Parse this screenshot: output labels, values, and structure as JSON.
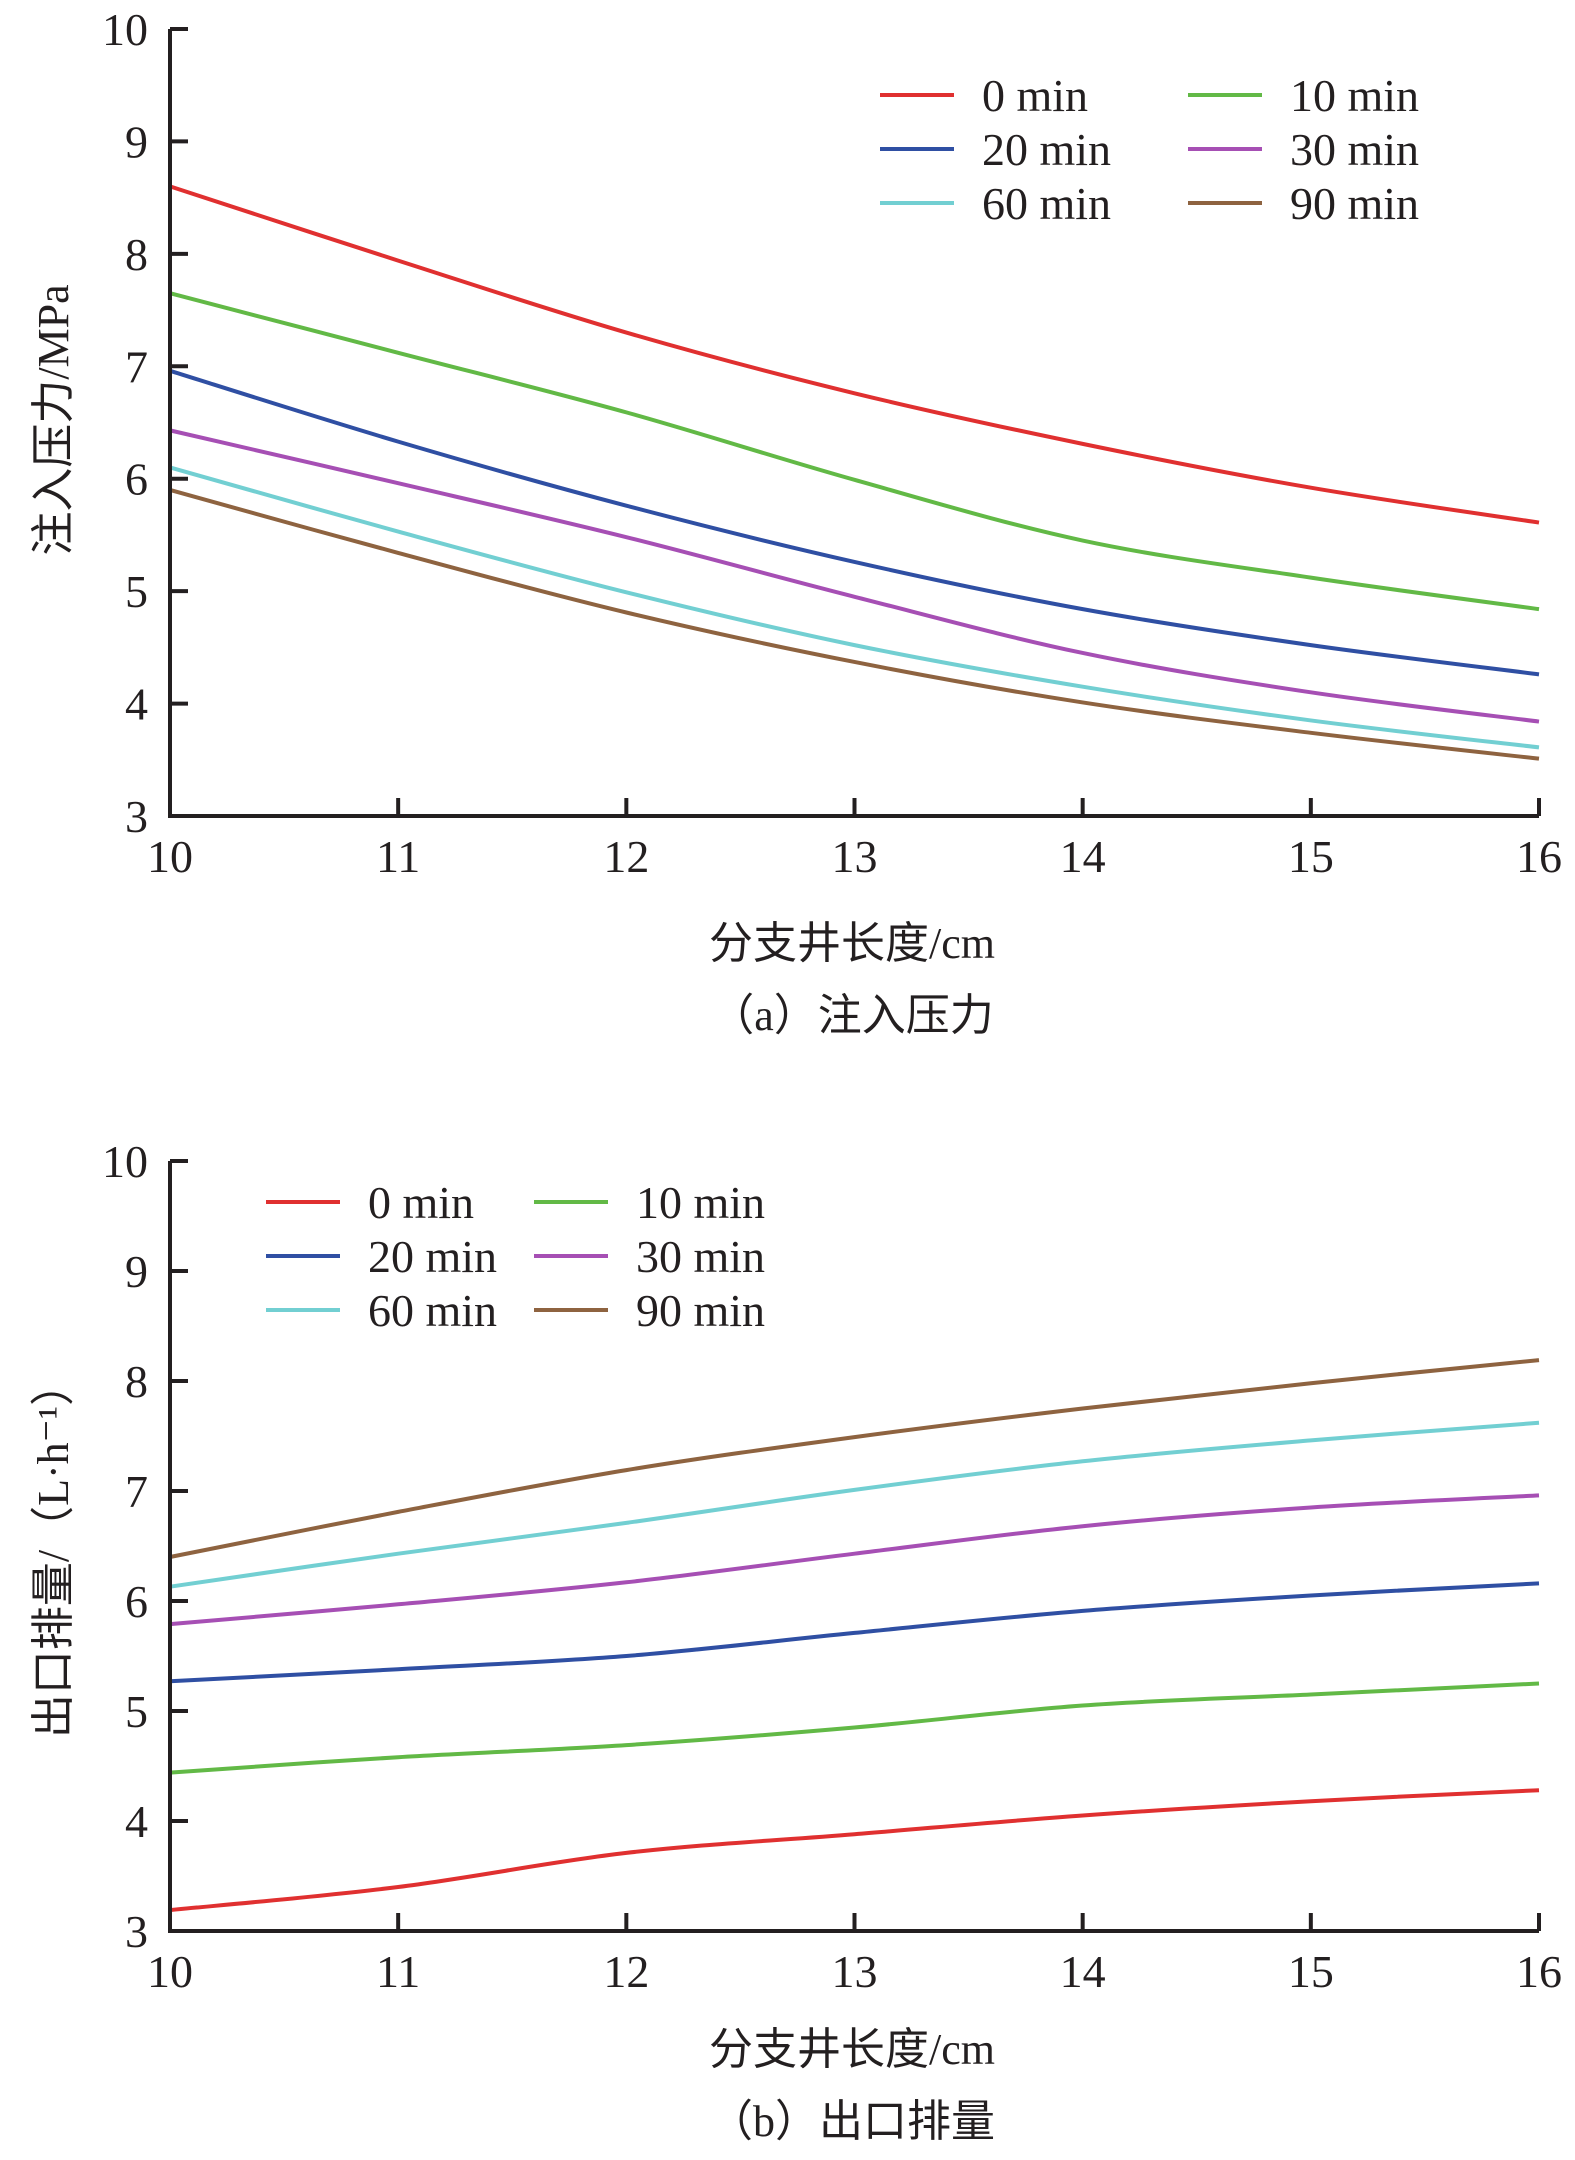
{
  "chart_data": [
    {
      "id": "a",
      "type": "line",
      "caption": "（a）注入压力",
      "xlabel": "分支井长度/cm",
      "ylabel": "注入压力/MPa",
      "xlim": [
        10,
        16
      ],
      "ylim": [
        3,
        10
      ],
      "xticks": [
        "10",
        "11",
        "12",
        "13",
        "14",
        "15",
        "16"
      ],
      "yticks": [
        "3",
        "4",
        "5",
        "6",
        "7",
        "8",
        "9",
        "10"
      ],
      "grid": false,
      "legend_position": "top-right",
      "x": [
        10,
        11,
        12,
        13,
        14,
        15,
        16
      ],
      "series": [
        {
          "name": "0 min",
          "color": "#e03030",
          "values": [
            8.6,
            7.94,
            7.3,
            6.76,
            6.31,
            5.92,
            5.61
          ]
        },
        {
          "name": "10 min",
          "color": "#62b946",
          "values": [
            7.65,
            7.12,
            6.59,
            5.99,
            5.45,
            5.12,
            4.84
          ]
        },
        {
          "name": "20 min",
          "color": "#2f4fa3",
          "values": [
            6.96,
            6.33,
            5.76,
            5.26,
            4.84,
            4.52,
            4.26
          ]
        },
        {
          "name": "30 min",
          "color": "#a64fb4",
          "values": [
            6.43,
            5.96,
            5.48,
            4.95,
            4.45,
            4.1,
            3.84
          ]
        },
        {
          "name": "60 min",
          "color": "#72cfd2",
          "values": [
            6.1,
            5.53,
            4.99,
            4.52,
            4.15,
            3.85,
            3.61
          ]
        },
        {
          "name": "90 min",
          "color": "#8e6340",
          "values": [
            5.9,
            5.34,
            4.81,
            4.37,
            4.01,
            3.74,
            3.51
          ]
        }
      ]
    },
    {
      "id": "b",
      "type": "line",
      "caption": "（b）出口排量",
      "xlabel": "分支井长度/cm",
      "ylabel": "出口排量/（L·h⁻¹）",
      "xlim": [
        10,
        16
      ],
      "ylim": [
        3,
        10
      ],
      "xticks": [
        "10",
        "11",
        "12",
        "13",
        "14",
        "15",
        "16"
      ],
      "yticks": [
        "3",
        "4",
        "5",
        "6",
        "7",
        "8",
        "9",
        "10"
      ],
      "grid": false,
      "legend_position": "top-left",
      "x": [
        10,
        11,
        12,
        13,
        14,
        15,
        16
      ],
      "series": [
        {
          "name": "0 min",
          "color": "#e03030",
          "values": [
            3.19,
            3.4,
            3.71,
            3.88,
            4.05,
            4.18,
            4.28
          ]
        },
        {
          "name": "10 min",
          "color": "#62b946",
          "values": [
            4.44,
            4.58,
            4.69,
            4.85,
            5.05,
            5.15,
            5.25
          ]
        },
        {
          "name": "20 min",
          "color": "#2f4fa3",
          "values": [
            5.27,
            5.38,
            5.5,
            5.71,
            5.91,
            6.05,
            6.16
          ]
        },
        {
          "name": "30 min",
          "color": "#a64fb4",
          "values": [
            5.79,
            5.97,
            6.17,
            6.43,
            6.68,
            6.85,
            6.96
          ]
        },
        {
          "name": "60 min",
          "color": "#72cfd2",
          "values": [
            6.13,
            6.43,
            6.71,
            7.01,
            7.27,
            7.46,
            7.62
          ]
        },
        {
          "name": "90 min",
          "color": "#8e6340",
          "values": [
            6.4,
            6.81,
            7.19,
            7.49,
            7.75,
            7.98,
            8.19
          ]
        }
      ]
    }
  ]
}
